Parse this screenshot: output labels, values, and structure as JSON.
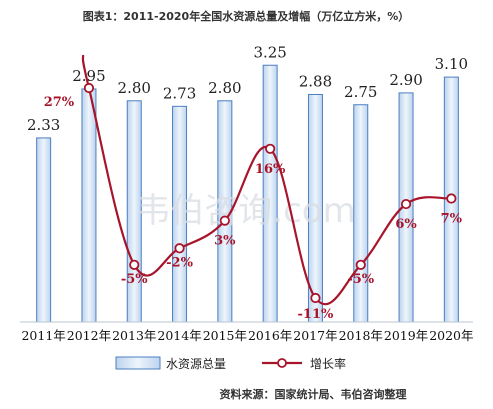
{
  "chart_data": {
    "type": "bar+line",
    "title": "图表1：2011-2020年全国水资源总量及增幅（万亿立方米，%）",
    "categories": [
      "2011年",
      "2012年",
      "2013年",
      "2014年",
      "2015年",
      "2016年",
      "2017年",
      "2018年",
      "2019年",
      "2020年"
    ],
    "series": [
      {
        "name": "水资源总量",
        "type": "bar",
        "values": [
          2.33,
          2.95,
          2.8,
          2.73,
          2.8,
          3.25,
          2.88,
          2.75,
          2.9,
          3.1
        ],
        "labels": [
          "2.33",
          "2.95",
          "2.80",
          "2.73",
          "2.80",
          "3.25",
          "2.88",
          "2.75",
          "2.90",
          "3.10"
        ]
      },
      {
        "name": "增长率",
        "type": "line",
        "values": [
          null,
          27,
          -5,
          -2,
          3,
          16,
          -11,
          -5,
          6,
          7
        ],
        "labels": [
          "",
          "27%",
          "-5%",
          "-2%",
          "3%",
          "16%",
          "-11%",
          "-5%",
          "6%",
          "7%"
        ]
      }
    ],
    "legend_position": "bottom",
    "grid": false,
    "colors": {
      "bar_fill": "#d6e6f6",
      "bar_edge": "#4a7fc1",
      "line": "#a8152b",
      "marker_fill": "#ffffff"
    }
  },
  "watermark": "韦伯咨询.com",
  "source_note": "资料来源：国家统计局、韦伯咨询整理"
}
